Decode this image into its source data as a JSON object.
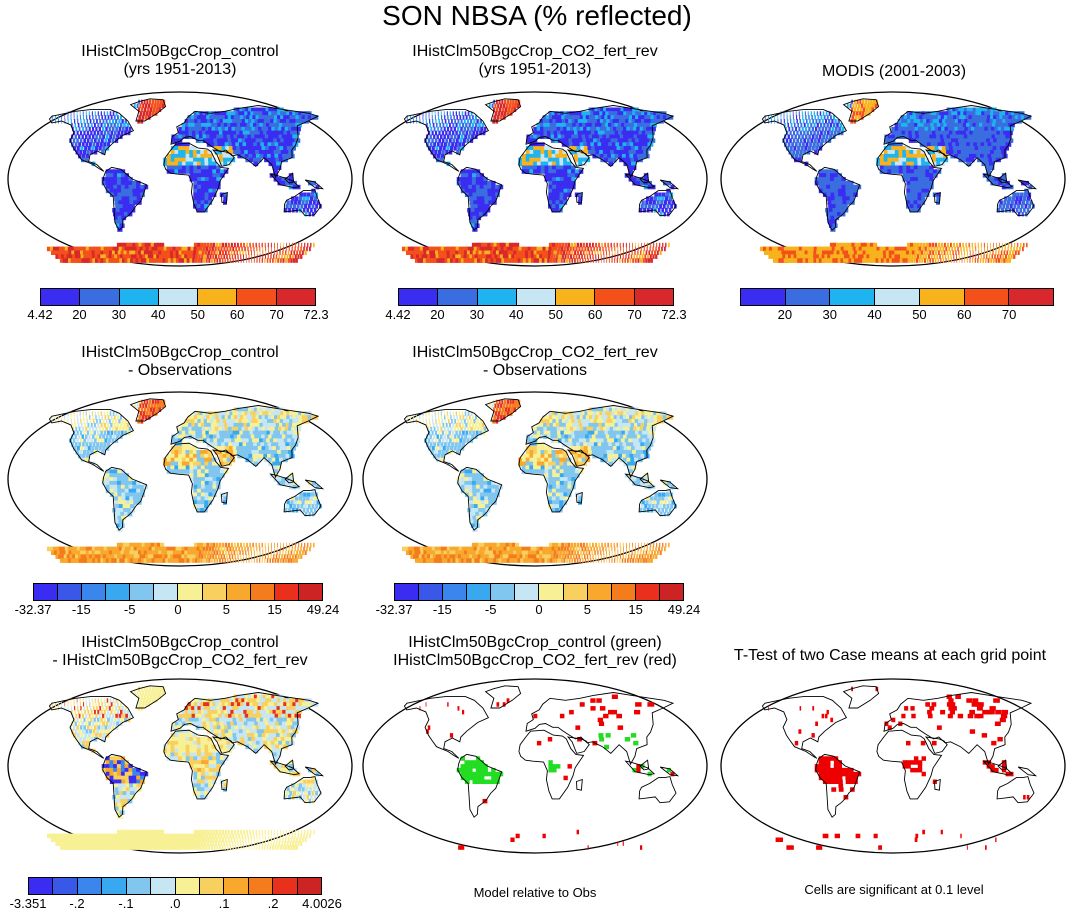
{
  "title": "SON NBSA (% reflected)",
  "panels": [
    {
      "title1": "IHistClm50BgcCrop_control",
      "title2": "(yrs 1951-2013)",
      "kind": "abs"
    },
    {
      "title1": "IHistClm50BgcCrop_CO2_fert_rev",
      "title2": "(yrs 1951-2013)",
      "kind": "abs"
    },
    {
      "title1": "MODIS (2001-2003)",
      "title2": "",
      "kind": "obs"
    },
    {
      "title1": "IHistClm50BgcCrop_control",
      "title2": "- Observations",
      "kind": "diff"
    },
    {
      "title1": "IHistClm50BgcCrop_CO2_fert_rev",
      "title2": "- Observations",
      "kind": "diff"
    },
    {
      "title1": "IHistClm50BgcCrop_control",
      "title2": "- IHistClm50BgcCrop_CO2_fert_rev",
      "kind": "diff2"
    },
    {
      "title1": "IHistClm50BgcCrop_control (green)",
      "title2": "IHistClm50BgcCrop_CO2_fert_rev (red)",
      "kind": "sig2"
    },
    {
      "title1": "T-Test of two Case means at each grid point",
      "title2": "",
      "kind": "sig"
    }
  ],
  "colorbars": {
    "abs": {
      "colors": [
        "#3a2cf0",
        "#3a6ee0",
        "#1fb4f0",
        "#c6e6f4",
        "#f8b21c",
        "#f4501c",
        "#d8282c"
      ],
      "labels": [
        "4.42",
        "20",
        "30",
        "40",
        "50",
        "60",
        "70",
        "72.3"
      ]
    },
    "obs": {
      "colors": [
        "#3a2cf0",
        "#3a6ee0",
        "#1fb4f0",
        "#c6e6f4",
        "#f8b21c",
        "#f4501c",
        "#d8282c"
      ],
      "labels": [
        "",
        "20",
        "30",
        "40",
        "50",
        "60",
        "70",
        ""
      ]
    },
    "diff": {
      "colors": [
        "#3a2cf0",
        "#3a58e8",
        "#3a86ec",
        "#38a8f0",
        "#80c6ee",
        "#c6e6f4",
        "#f8f094",
        "#f8d060",
        "#f8a82c",
        "#f47c1c",
        "#e8301c",
        "#cc2424"
      ],
      "labels": [
        "-32.37",
        "",
        "-15",
        "",
        "-5",
        "",
        "0",
        "",
        "5",
        "",
        "15",
        "",
        "49.24"
      ]
    },
    "diff2": {
      "colors": [
        "#3a2cf0",
        "#3a58e8",
        "#3a86ec",
        "#38a8f0",
        "#80c6ee",
        "#c6e6f4",
        "#f8f094",
        "#f8d060",
        "#f8a82c",
        "#f47c1c",
        "#e8301c",
        "#cc2424"
      ],
      "labels": [
        "-3.351",
        "",
        "-.2",
        "",
        "-.1",
        "",
        ".0",
        "",
        ".1",
        "",
        ".2",
        "",
        "4.0026"
      ]
    }
  },
  "notes": {
    "model_relative": "Model relative to Obs",
    "significance": "Cells are significant at 0.1 level"
  },
  "colors": {
    "ocean": "#ffffff",
    "outline": "#000000",
    "sig_green": "#22dd22",
    "sig_red": "#ee0000"
  }
}
